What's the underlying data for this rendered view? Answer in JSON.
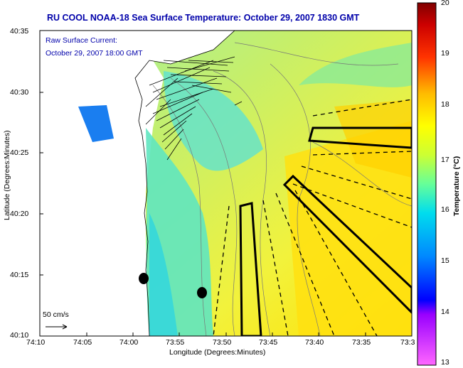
{
  "title": "RU COOL  NOAA-18  Sea Surface Temperature:  October 29, 2007 1830 GMT",
  "current_label": {
    "line1": "Raw Surface Current:",
    "line2": "October 29, 2007 18:00 GMT"
  },
  "scale_bar": {
    "label": "50 cm/s"
  },
  "axes": {
    "xlabel": "Longitude (Degrees:Minutes)",
    "ylabel": "Latitude (Degrees:Minutes)",
    "x_ticks": [
      "74:10",
      "74:05",
      "74:00",
      "73:55",
      "73:50",
      "73:45",
      "73:40",
      "73:35",
      "73:3"
    ],
    "y_ticks": [
      "40:35",
      "40:30",
      "40:25",
      "40:20",
      "40:15",
      "40:10"
    ]
  },
  "colorbar": {
    "label": "Temperature (°C)",
    "min": 13,
    "max": 20,
    "ticks": [
      "20",
      "19",
      "18",
      "17",
      "16",
      "15",
      "14",
      "13"
    ],
    "stops": [
      "#ff66ff",
      "#0000ff",
      "#00ccff",
      "#66ff99",
      "#ffff00",
      "#ff9900",
      "#ff0000",
      "#800000"
    ]
  },
  "colors": {
    "land": "#ffffff",
    "water_base": "#b8e86a",
    "title_text": "#0000aa"
  }
}
